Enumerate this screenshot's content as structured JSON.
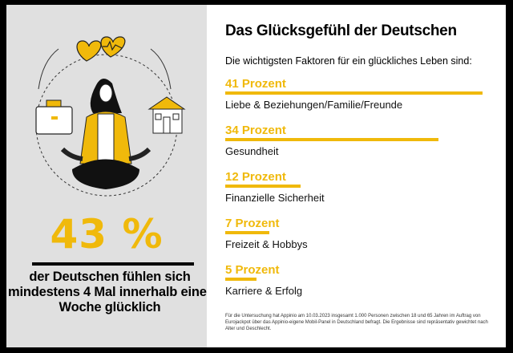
{
  "headline": {
    "value": "43 %",
    "text": "der Deutschen fühlen sich mindestens 4 Mal innerhalb einer Woche glücklich"
  },
  "title": "Das Glücksgefühl der Deutschen",
  "intro": "Die wichtigsten Faktoren für ein glückliches Leben sind:",
  "chart_data": {
    "type": "bar",
    "orientation": "horizontal",
    "title": "Das Glücksgefühl der Deutschen",
    "categories": [
      "Liebe & Beziehungen/Familie/Freunde",
      "Gesundheit",
      "Finanzielle Sicherheit",
      "Freizeit & Hobbys",
      "Karriere & Erfolg"
    ],
    "values": [
      41,
      34,
      12,
      7,
      5
    ],
    "value_labels": [
      "41 Prozent",
      "34 Prozent",
      "12 Prozent",
      "7 Prozent",
      "5 Prozent"
    ],
    "unit": "Prozent",
    "color": "#f0b90b"
  },
  "footnote": "Für die Untersuchung hat Appinio am 10.03.2023 insgesamt 1.000 Personen zwischen 18 und 65 Jahren im Auftrag von Eurojackpot über das Appinio-eigene Mobil-Panel in Deutschland befragt. Die Ergebnisse sind repräsentativ gewichtet nach Alter und Geschlecht.",
  "colors": {
    "accent": "#f0b90b",
    "panel": "#e0e0e0",
    "frame": "#000000"
  }
}
